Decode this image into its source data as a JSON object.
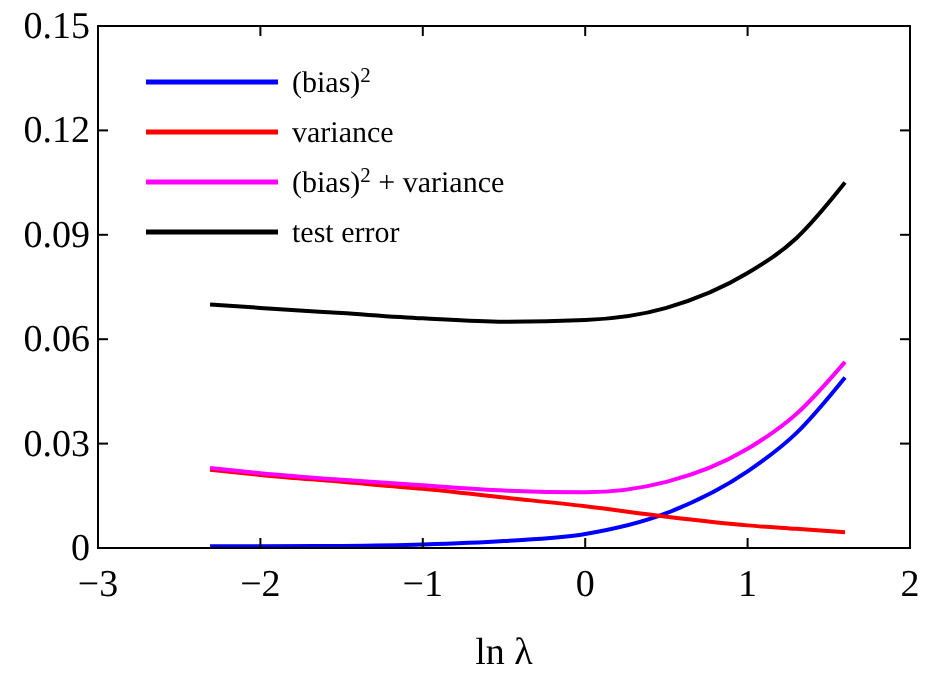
{
  "chart_data": {
    "type": "line",
    "xlabel": "ln λ",
    "x": [
      -2.31,
      -2,
      -1.5,
      -1,
      -0.5,
      0,
      0.5,
      1,
      1.3,
      1.6
    ],
    "series": [
      {
        "name": "(bias)$^{2}$",
        "color": "#0000ff",
        "values": [
          0.0005,
          0.0005,
          0.0006,
          0.001,
          0.002,
          0.004,
          0.01,
          0.022,
          0.033,
          0.049
        ]
      },
      {
        "name": "variance",
        "color": "#ff0000",
        "values": [
          0.0225,
          0.021,
          0.019,
          0.017,
          0.0145,
          0.012,
          0.009,
          0.0065,
          0.0055,
          0.0045
        ]
      },
      {
        "name": "(bias)$^{2}$ + variance",
        "color": "#ff00ff",
        "values": [
          0.023,
          0.0215,
          0.0196,
          0.018,
          0.0165,
          0.016,
          0.019,
          0.0285,
          0.0385,
          0.0535
        ]
      },
      {
        "name": "test error",
        "color": "#000000",
        "values": [
          0.07,
          0.069,
          0.0675,
          0.066,
          0.065,
          0.0655,
          0.069,
          0.079,
          0.089,
          0.105
        ]
      }
    ],
    "xlim": [
      -3,
      2
    ],
    "ylim": [
      0,
      0.15
    ],
    "xticks": [
      {
        "value": -3,
        "label": "−3"
      },
      {
        "value": -2,
        "label": "−2"
      },
      {
        "value": -1,
        "label": "−1"
      },
      0,
      1,
      2
    ],
    "yticks": [
      0,
      0.03,
      0.06,
      0.09,
      0.12,
      0.15
    ],
    "legend": "top left",
    "grid": false,
    "marker": "none",
    "line_style": "solid"
  }
}
